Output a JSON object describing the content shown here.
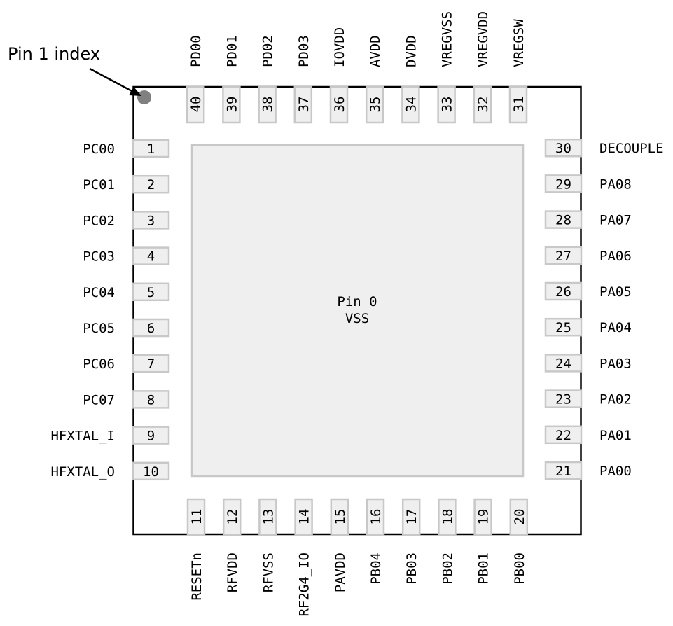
{
  "pin1_index_label": "Pin 1 index",
  "center_pad": {
    "line1": "Pin 0",
    "line2": "VSS"
  },
  "colors": {
    "outline": "#000000",
    "pad_fill": "#efefef",
    "pad_stroke": "#c8c8c8",
    "index_dot": "#808080"
  },
  "pins_left": [
    {
      "num": "1",
      "name": "PC00"
    },
    {
      "num": "2",
      "name": "PC01"
    },
    {
      "num": "3",
      "name": "PC02"
    },
    {
      "num": "4",
      "name": "PC03"
    },
    {
      "num": "5",
      "name": "PC04"
    },
    {
      "num": "6",
      "name": "PC05"
    },
    {
      "num": "7",
      "name": "PC06"
    },
    {
      "num": "8",
      "name": "PC07"
    },
    {
      "num": "9",
      "name": "HFXTAL_I"
    },
    {
      "num": "10",
      "name": "HFXTAL_O"
    }
  ],
  "pins_bottom": [
    {
      "num": "11",
      "name": "RESETn"
    },
    {
      "num": "12",
      "name": "RFVDD"
    },
    {
      "num": "13",
      "name": "RFVSS"
    },
    {
      "num": "14",
      "name": "RF2G4_IO"
    },
    {
      "num": "15",
      "name": "PAVDD"
    },
    {
      "num": "16",
      "name": "PB04"
    },
    {
      "num": "17",
      "name": "PB03"
    },
    {
      "num": "18",
      "name": "PB02"
    },
    {
      "num": "19",
      "name": "PB01"
    },
    {
      "num": "20",
      "name": "PB00"
    }
  ],
  "pins_right": [
    {
      "num": "21",
      "name": "PA00"
    },
    {
      "num": "22",
      "name": "PA01"
    },
    {
      "num": "23",
      "name": "PA02"
    },
    {
      "num": "24",
      "name": "PA03"
    },
    {
      "num": "25",
      "name": "PA04"
    },
    {
      "num": "26",
      "name": "PA05"
    },
    {
      "num": "27",
      "name": "PA06"
    },
    {
      "num": "28",
      "name": "PA07"
    },
    {
      "num": "29",
      "name": "PA08"
    },
    {
      "num": "30",
      "name": "DECOUPLE"
    }
  ],
  "pins_top": [
    {
      "num": "31",
      "name": "VREGSW"
    },
    {
      "num": "32",
      "name": "VREGVDD"
    },
    {
      "num": "33",
      "name": "VREGVSS"
    },
    {
      "num": "34",
      "name": "DVDD"
    },
    {
      "num": "35",
      "name": "AVDD"
    },
    {
      "num": "36",
      "name": "IOVDD"
    },
    {
      "num": "37",
      "name": "PD03"
    },
    {
      "num": "38",
      "name": "PD02"
    },
    {
      "num": "39",
      "name": "PD01"
    },
    {
      "num": "40",
      "name": "PD00"
    }
  ]
}
